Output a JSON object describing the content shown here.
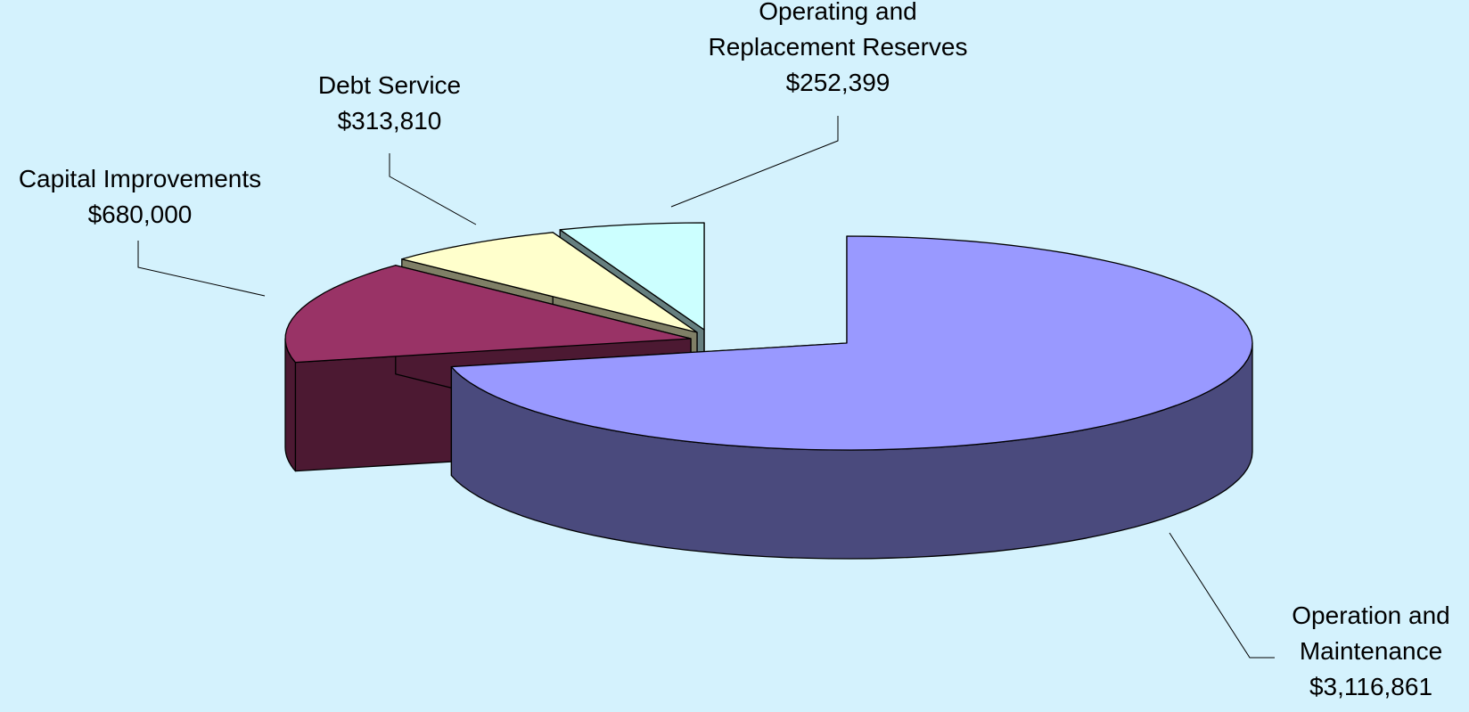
{
  "chart_data": {
    "type": "pie",
    "style": "3d-exploded",
    "slices": [
      {
        "name": "Operation and Maintenance",
        "name_lines": [
          "Operation and",
          "Maintenance"
        ],
        "value": 3116861,
        "value_label": "$3,116,861",
        "color": "#9999ff",
        "side_color": "#4a4a7d"
      },
      {
        "name": "Capital Improvements",
        "name_lines": [
          "Capital Improvements"
        ],
        "value": 680000,
        "value_label": "$680,000",
        "color": "#993366",
        "side_color": "#4c1932"
      },
      {
        "name": "Debt Service",
        "name_lines": [
          "Debt Service"
        ],
        "value": 313810,
        "value_label": "$313,810",
        "color": "#ffffcc",
        "side_color": "#7f7f66"
      },
      {
        "name": "Operating and Replacement Reserves",
        "name_lines": [
          "Operating and",
          "Replacement Reserves"
        ],
        "value": 252399,
        "value_label": "$252,399",
        "color": "#ccffff",
        "side_color": "#667f7f"
      }
    ],
    "background_color": "#d4f2fd"
  }
}
